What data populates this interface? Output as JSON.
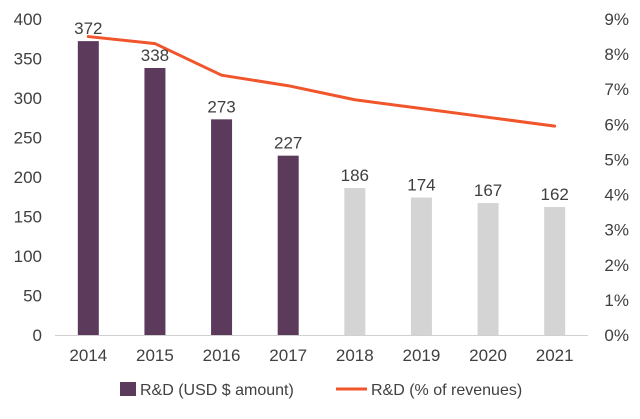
{
  "chart_data": {
    "type": "bar",
    "title": "",
    "xlabel": "",
    "ylabel": "",
    "categories": [
      "2014",
      "2015",
      "2016",
      "2017",
      "2018",
      "2019",
      "2020",
      "2021"
    ],
    "series": [
      {
        "name": "R&D (USD $ amount)",
        "type": "bar",
        "axis": "left",
        "values": [
          372,
          338,
          273,
          227,
          186,
          174,
          167,
          162
        ],
        "data_labels": [
          "372",
          "338",
          "273",
          "227",
          "186",
          "174",
          "167",
          "162"
        ],
        "colors": [
          "#5b3a5c",
          "#5b3a5c",
          "#5b3a5c",
          "#5b3a5c",
          "#d4d4d4",
          "#d4d4d4",
          "#d4d4d4",
          "#d4d4d4"
        ]
      },
      {
        "name": "R&D (% of revenues)",
        "type": "line",
        "axis": "right",
        "values": [
          8.5,
          8.3,
          7.4,
          7.1,
          6.7,
          6.45,
          6.2,
          5.95
        ],
        "color": "#f0552b"
      }
    ],
    "ylim": [
      0,
      400
    ],
    "y_ticks": [
      0,
      50,
      100,
      150,
      200,
      250,
      300,
      350,
      400
    ],
    "y_tick_labels": [
      "0",
      "50",
      "100",
      "150",
      "200",
      "250",
      "300",
      "350",
      "400"
    ],
    "y2lim": [
      0,
      9
    ],
    "y2_ticks": [
      0,
      1,
      2,
      3,
      4,
      5,
      6,
      7,
      8,
      9
    ],
    "y2_tick_labels": [
      "0%",
      "1%",
      "2%",
      "3%",
      "4%",
      "5%",
      "6%",
      "7%",
      "8%",
      "9%"
    ],
    "grid": false,
    "legend": {
      "position": "bottom",
      "entries": [
        "R&D (USD $ amount)",
        "R&D (% of revenues)"
      ]
    }
  }
}
